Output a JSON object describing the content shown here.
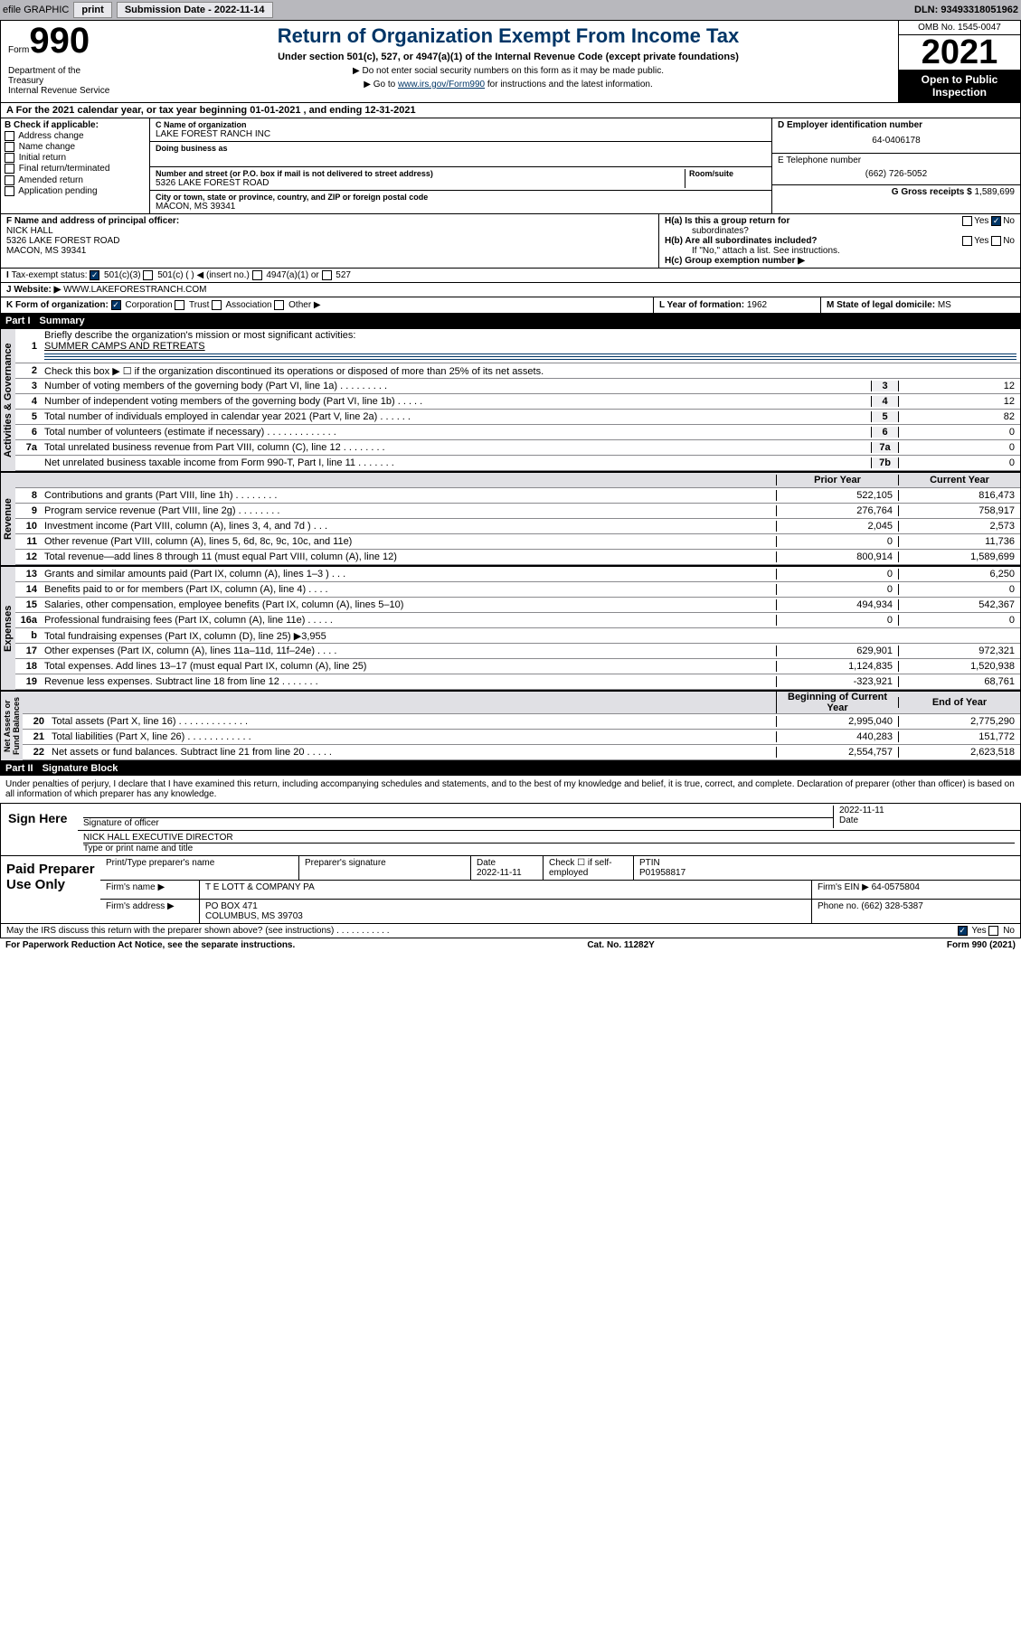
{
  "topbar": {
    "efile": "efile GRAPHIC",
    "print": "print",
    "sub_lbl": "Submission Date - 2022-11-14",
    "dln": "DLN: 93493318051962"
  },
  "header": {
    "form_word": "Form",
    "form_num": "990",
    "title": "Return of Organization Exempt From Income Tax",
    "sub": "Under section 501(c), 527, or 4947(a)(1) of the Internal Revenue Code (except private foundations)",
    "note1": "▶ Do not enter social security numbers on this form as it may be made public.",
    "note2_pre": "▶ Go to ",
    "note2_link": "www.irs.gov/Form990",
    "note2_post": " for instructions and the latest information.",
    "omb": "OMB No. 1545-0047",
    "year": "2021",
    "open": "Open to Public Inspection",
    "dept": "Department of the Treasury",
    "irs": "Internal Revenue Service"
  },
  "ty": "For the 2021 calendar year, or tax year beginning 01-01-2021    , and ending 12-31-2021",
  "secB": {
    "hdr": "B Check if applicable:",
    "opts": [
      "Address change",
      "Name change",
      "Initial return",
      "Final return/terminated",
      "Amended return",
      "Application pending"
    ]
  },
  "secC": {
    "lbl": "C Name of organization",
    "name": "LAKE FOREST RANCH INC",
    "dba_lbl": "Doing business as",
    "addr_lbl": "Number and street (or P.O. box if mail is not delivered to street address)",
    "addr": "5326 LAKE FOREST ROAD",
    "suite_lbl": "Room/suite",
    "city_lbl": "City or town, state or province, country, and ZIP or foreign postal code",
    "city": "MACON, MS  39341"
  },
  "secD": {
    "lbl": "D Employer identification number",
    "val": "64-0406178"
  },
  "secE": {
    "lbl": "E Telephone number",
    "val": "(662) 726-5052"
  },
  "secG": {
    "lbl": "G Gross receipts $",
    "val": "1,589,699"
  },
  "secF": {
    "lbl": "F  Name and address of principal officer:",
    "name": "NICK HALL",
    "addr1": "5326 LAKE FOREST ROAD",
    "addr2": "MACON, MS  39341"
  },
  "secH": {
    "a": "H(a)  Is this a group return for",
    "a2": "subordinates?",
    "b": "H(b)  Are all subordinates included?",
    "note": "If \"No,\" attach a list. See instructions.",
    "c": "H(c)  Group exemption number ▶"
  },
  "secI": {
    "lbl": "Tax-exempt status:",
    "o1": "501(c)(3)",
    "o2": "501(c) (   ) ◀ (insert no.)",
    "o3": "4947(a)(1) or",
    "o4": "527"
  },
  "secJ": {
    "lbl": "Website: ▶",
    "val": "WWW.LAKEFORESTRANCH.COM"
  },
  "secK": {
    "lbl": "K Form of organization:",
    "o1": "Corporation",
    "o2": "Trust",
    "o3": "Association",
    "o4": "Other ▶"
  },
  "secL": {
    "lbl": "L Year of formation:",
    "val": "1962"
  },
  "secM": {
    "lbl": "M State of legal domicile:",
    "val": "MS"
  },
  "part1": {
    "num": "Part I",
    "title": "Summary"
  },
  "p1": {
    "l1": "Briefly describe the organization's mission or most significant activities:",
    "l1v": "SUMMER CAMPS AND RETREATS",
    "l2": "Check this box ▶ ☐  if the organization discontinued its operations or disposed of more than 25% of its net assets.",
    "rows": [
      {
        "n": "3",
        "d": "Number of voting members of the governing body (Part VI, line 1a)   .   .   .   .   .   .   .   .   .",
        "c": "3",
        "v": "12"
      },
      {
        "n": "4",
        "d": "Number of independent voting members of the governing body (Part VI, line 1b)   .   .   .   .   .",
        "c": "4",
        "v": "12"
      },
      {
        "n": "5",
        "d": "Total number of individuals employed in calendar year 2021 (Part V, line 2a)   .   .   .   .   .   .",
        "c": "5",
        "v": "82"
      },
      {
        "n": "6",
        "d": "Total number of volunteers (estimate if necessary)   .   .   .   .   .   .   .   .   .   .   .   .   .",
        "c": "6",
        "v": "0"
      },
      {
        "n": "7a",
        "d": "Total unrelated business revenue from Part VIII, column (C), line 12   .   .   .   .   .   .   .   .",
        "c": "7a",
        "v": "0"
      },
      {
        "n": "",
        "d": "Net unrelated business taxable income from Form 990-T, Part I, line 11    .   .   .   .   .   .   .",
        "c": "7b",
        "v": "0"
      }
    ],
    "py": "Prior Year",
    "cy": "Current Year",
    "rev": [
      {
        "n": "8",
        "d": "Contributions and grants (Part VIII, line 1h)   .   .   .   .   .   .   .   .",
        "p": "522,105",
        "c": "816,473"
      },
      {
        "n": "9",
        "d": "Program service revenue (Part VIII, line 2g)   .   .   .   .   .   .   .   .",
        "p": "276,764",
        "c": "758,917"
      },
      {
        "n": "10",
        "d": "Investment income (Part VIII, column (A), lines 3, 4, and 7d )   .   .   .",
        "p": "2,045",
        "c": "2,573"
      },
      {
        "n": "11",
        "d": "Other revenue (Part VIII, column (A), lines 5, 6d, 8c, 9c, 10c, and 11e)",
        "p": "0",
        "c": "11,736"
      },
      {
        "n": "12",
        "d": "Total revenue—add lines 8 through 11 (must equal Part VIII, column (A), line 12)",
        "p": "800,914",
        "c": "1,589,699"
      }
    ],
    "exp": [
      {
        "n": "13",
        "d": "Grants and similar amounts paid (Part IX, column (A), lines 1–3 )   .   .   .",
        "p": "0",
        "c": "6,250"
      },
      {
        "n": "14",
        "d": "Benefits paid to or for members (Part IX, column (A), line 4)   .   .   .   .",
        "p": "0",
        "c": "0"
      },
      {
        "n": "15",
        "d": "Salaries, other compensation, employee benefits (Part IX, column (A), lines 5–10)",
        "p": "494,934",
        "c": "542,367"
      },
      {
        "n": "16a",
        "d": "Professional fundraising fees (Part IX, column (A), line 11e)   .   .   .   .   .",
        "p": "0",
        "c": "0"
      },
      {
        "n": "b",
        "d": "Total fundraising expenses (Part IX, column (D), line 25) ▶3,955",
        "p": "",
        "c": "",
        "gray": true
      },
      {
        "n": "17",
        "d": "Other expenses (Part IX, column (A), lines 11a–11d, 11f–24e)   .   .   .   .",
        "p": "629,901",
        "c": "972,321"
      },
      {
        "n": "18",
        "d": "Total expenses. Add lines 13–17 (must equal Part IX, column (A), line 25)",
        "p": "1,124,835",
        "c": "1,520,938"
      },
      {
        "n": "19",
        "d": "Revenue less expenses. Subtract line 18 from line 12   .   .   .   .   .   .   .",
        "p": "-323,921",
        "c": "68,761"
      }
    ],
    "by": "Beginning of Current Year",
    "ey": "End of Year",
    "na": [
      {
        "n": "20",
        "d": "Total assets (Part X, line 16)   .   .   .   .   .   .   .   .   .   .   .   .   .",
        "p": "2,995,040",
        "c": "2,775,290"
      },
      {
        "n": "21",
        "d": "Total liabilities (Part X, line 26)    .   .   .   .   .   .   .   .   .   .   .   .",
        "p": "440,283",
        "c": "151,772"
      },
      {
        "n": "22",
        "d": "Net assets or fund balances. Subtract line 21 from line 20   .   .   .   .   .",
        "p": "2,554,757",
        "c": "2,623,518"
      }
    ]
  },
  "part2": {
    "num": "Part II",
    "title": "Signature Block"
  },
  "sig": {
    "intro": "Under penalties of perjury, I declare that I have examined this return, including accompanying schedules and statements, and to the best of my knowledge and belief, it is true, correct, and complete. Declaration of preparer (other than officer) is based on all information of which preparer has any knowledge.",
    "here": "Sign Here",
    "sigoff": "Signature of officer",
    "date": "Date",
    "datev": "2022-11-11",
    "name": "NICK HALL  EXECUTIVE DIRECTOR",
    "name_lbl": "Type or print name and title"
  },
  "paid": {
    "lbl": "Paid Preparer Use Only",
    "c1": "Print/Type preparer's name",
    "c2": "Preparer's signature",
    "c3": "Date",
    "c3v": "2022-11-11",
    "c4": "Check ☐ if self-employed",
    "c5": "PTIN",
    "c5v": "P01958817",
    "firm": "Firm's name    ▶",
    "firmv": "T E LOTT & COMPANY PA",
    "ein": "Firm's EIN ▶",
    "einv": "64-0575804",
    "addr": "Firm's address ▶",
    "addrv": "PO BOX 471",
    "addr2": "COLUMBUS, MS  39703",
    "ph": "Phone no.",
    "phv": "(662) 328-5387"
  },
  "may": {
    "q": "May the IRS discuss this return with the preparer shown above? (see instructions)    .   .   .   .   .   .   .   .   .   .   .",
    "yes": "Yes",
    "no": "No"
  },
  "foot": {
    "l": "For Paperwork Reduction Act Notice, see the separate instructions.",
    "m": "Cat. No. 11282Y",
    "r": "Form 990 (2021)"
  }
}
